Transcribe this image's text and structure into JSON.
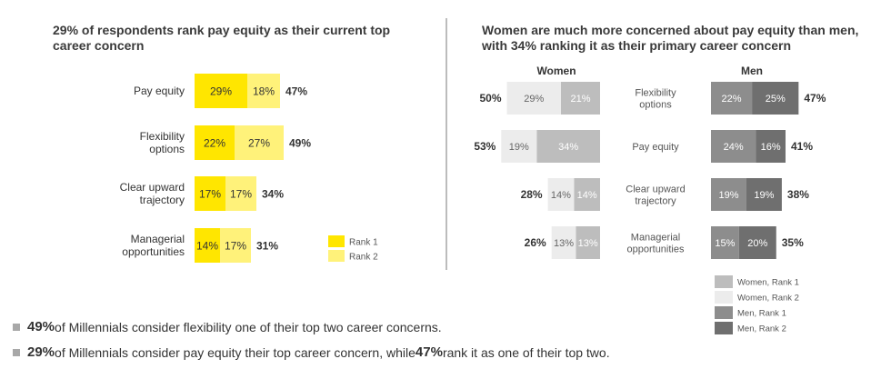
{
  "left_title": "29% of respondents rank pay equity as their current top career concern",
  "right_title": "Women are much more concerned about pay equity than men, with 34% ranking it as their primary career concern",
  "right_women_header": "Women",
  "right_men_header": "Men",
  "colors": {
    "rank1_yellow": "#ffe600",
    "rank2_yellow": "#fff27a",
    "women_rank1": "#bdbdbd",
    "women_rank2": "#ececec",
    "men_rank1": "#8d8d8d",
    "men_rank2": "#6f6f6f",
    "bullet": "#a8a8a8"
  },
  "bullets": [
    {
      "value": "49%",
      "text": " of Millennials consider flexibility one of their top two career concerns."
    },
    {
      "value": "29%",
      "text_before": " of Millennials consider pay equity their top career concern, while ",
      "value2": "47%",
      "text_after": " rank it as one of their top two."
    }
  ],
  "chart_data": [
    {
      "type": "bar",
      "stacked": true,
      "orientation": "horizontal",
      "title": "29% of respondents rank pay equity as their current top career concern",
      "categories": [
        "Pay equity",
        "Flexibility options",
        "Clear upward trajectory",
        "Managerial opportunities"
      ],
      "series": [
        {
          "name": "Rank 1",
          "values": [
            29,
            22,
            17,
            14
          ]
        },
        {
          "name": "Rank 2",
          "values": [
            18,
            27,
            17,
            17
          ]
        }
      ],
      "totals": [
        "47%",
        "49%",
        "34%",
        "31%"
      ],
      "legend": "bottom-right"
    },
    {
      "type": "bar",
      "stacked": true,
      "orientation": "horizontal",
      "title": "Women are much more concerned about pay equity than men, with 34% ranking it as their primary career concern",
      "panels": [
        {
          "header": "Women",
          "direction": "leftward",
          "categories": [
            "Flexibility options",
            "Pay equity",
            "Clear upward trajectory",
            "Managerial opportunities"
          ],
          "series": [
            {
              "name": "Women, Rank 1",
              "values": [
                21,
                34,
                14,
                13
              ]
            },
            {
              "name": "Women, Rank 2",
              "values": [
                29,
                19,
                14,
                13
              ]
            }
          ],
          "totals": [
            "50%",
            "53%",
            "28%",
            "26%"
          ]
        },
        {
          "header": "Men",
          "direction": "rightward",
          "categories": [
            "Flexibility options",
            "Pay equity",
            "Clear upward trajectory",
            "Managerial opportunities"
          ],
          "series": [
            {
              "name": "Men, Rank 1",
              "values": [
                22,
                24,
                19,
                15
              ]
            },
            {
              "name": "Men, Rank 2",
              "values": [
                25,
                16,
                19,
                20
              ]
            }
          ],
          "totals": [
            "47%",
            "41%",
            "38%",
            "35%"
          ]
        }
      ],
      "legend": [
        "Women, Rank 1",
        "Women, Rank 2",
        "Men, Rank 1",
        "Men, Rank 2"
      ]
    }
  ]
}
